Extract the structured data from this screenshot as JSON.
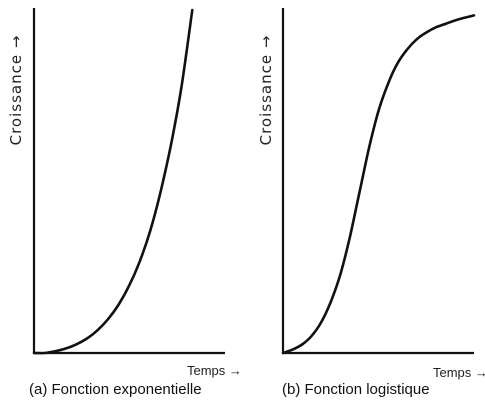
{
  "chart_data": [
    {
      "type": "line",
      "caption": "(a) Fonction exponentielle",
      "xlabel": "Temps →",
      "ylabel": "Croissance →",
      "xlim": [
        0,
        1
      ],
      "ylim": [
        0,
        1
      ],
      "series": [
        {
          "x": [
            0.0,
            0.05,
            0.1,
            0.15,
            0.2,
            0.25,
            0.3,
            0.35,
            0.4,
            0.45,
            0.5,
            0.55,
            0.6,
            0.65,
            0.7,
            0.75
          ],
          "y": [
            0.0,
            0.0,
            0.005,
            0.013,
            0.025,
            0.042,
            0.066,
            0.098,
            0.14,
            0.195,
            0.265,
            0.355,
            0.47,
            0.61,
            0.78,
            1.0
          ]
        }
      ]
    },
    {
      "type": "line",
      "caption": "(b) Fonction logistique",
      "xlabel": "Temps →",
      "ylabel": "Croissance →",
      "xlim": [
        0,
        1
      ],
      "ylim": [
        0,
        1
      ],
      "series": [
        {
          "x": [
            0.0,
            0.05,
            0.1,
            0.15,
            0.2,
            0.25,
            0.3,
            0.35,
            0.4,
            0.45,
            0.5,
            0.55,
            0.6,
            0.65,
            0.7,
            0.75,
            0.8,
            0.85,
            0.9,
            0.95,
            1.0
          ],
          "y": [
            0.0,
            0.01,
            0.025,
            0.05,
            0.09,
            0.15,
            0.23,
            0.34,
            0.47,
            0.6,
            0.71,
            0.79,
            0.85,
            0.89,
            0.92,
            0.94,
            0.955,
            0.965,
            0.975,
            0.983,
            0.99
          ]
        }
      ]
    }
  ]
}
